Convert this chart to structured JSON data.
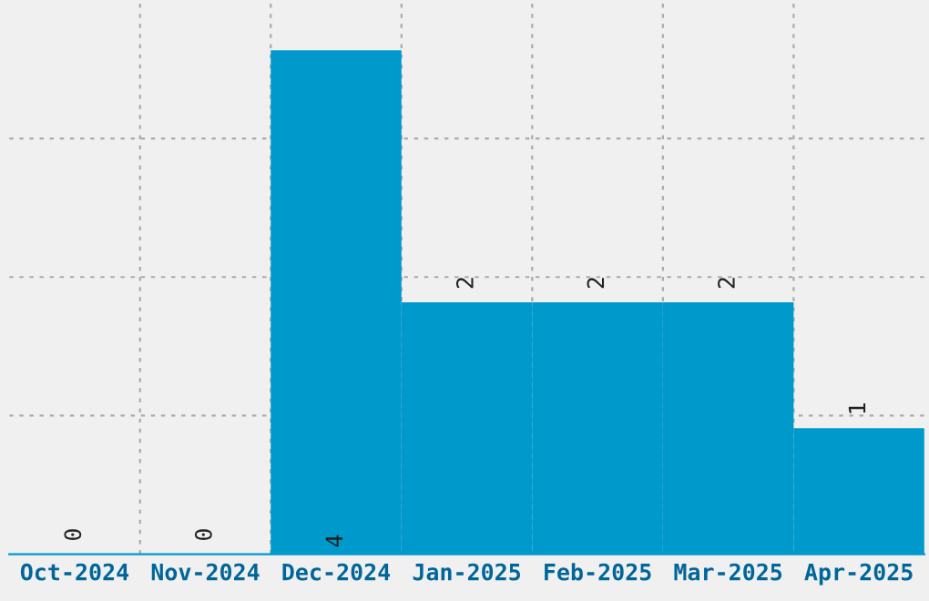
{
  "chart_data": {
    "type": "bar",
    "categories": [
      "Oct-2024",
      "Nov-2024",
      "Dec-2024",
      "Jan-2025",
      "Feb-2025",
      "Mar-2025",
      "Apr-2025"
    ],
    "values": [
      0,
      0,
      4,
      2,
      2,
      2,
      1
    ],
    "color": "#0099cc",
    "ylim": [
      0,
      4.4
    ],
    "yticks": [
      {
        "value": 1.1,
        "label": null
      },
      {
        "value": 2.2,
        "label": null
      },
      {
        "value": 3.3,
        "label": null
      }
    ],
    "tick_labels": "x",
    "grid": true,
    "data_labels": true
  }
}
